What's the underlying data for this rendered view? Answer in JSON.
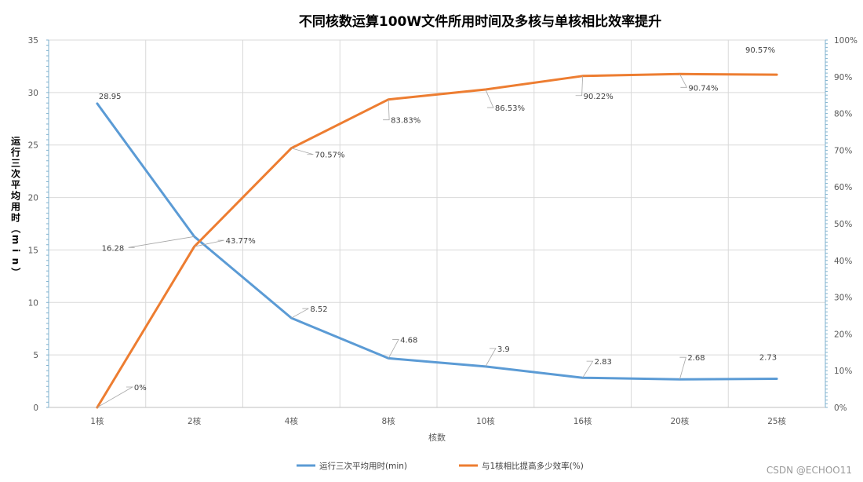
{
  "chart_data": {
    "type": "line",
    "title": "不同核数运算100W文件所用时间及多核与单核相比效率提升",
    "xlabel": "核数",
    "ylabel": "运行三次平均用时（min）",
    "ylabel_right": "",
    "categories": [
      "1核",
      "2核",
      "4核",
      "8核",
      "10核",
      "16核",
      "20核",
      "25核"
    ],
    "ylim": [
      0,
      35
    ],
    "y_ticks": [
      "0",
      "5",
      "10",
      "15",
      "20",
      "25",
      "30",
      "35"
    ],
    "y2lim": [
      0,
      100
    ],
    "y2_ticks": [
      "0%",
      "10%",
      "20%",
      "30%",
      "40%",
      "50%",
      "60%",
      "70%",
      "80%",
      "90%",
      "100%"
    ],
    "grid": true,
    "legend_position": "bottom",
    "series": [
      {
        "name": "运行三次平均用时(min)",
        "axis": "left",
        "color": "#5b9bd5",
        "values": [
          28.95,
          16.28,
          8.52,
          4.68,
          3.9,
          2.83,
          2.68,
          2.73
        ],
        "labels": [
          "28.95",
          "16.28",
          "8.52",
          "4.68",
          "3.9",
          "2.83",
          "2.68",
          "2.73"
        ]
      },
      {
        "name": "与1核相比提高多少效率(%)",
        "axis": "right",
        "color": "#ed7d31",
        "values": [
          0,
          43.77,
          70.57,
          83.83,
          86.53,
          90.22,
          90.74,
          90.57
        ],
        "labels": [
          "0%",
          "43.77%",
          "70.57%",
          "83.83%",
          "86.53%",
          "90.22%",
          "90.74%",
          "90.57%"
        ]
      }
    ]
  },
  "watermark": "CSDN @ECHOO11"
}
